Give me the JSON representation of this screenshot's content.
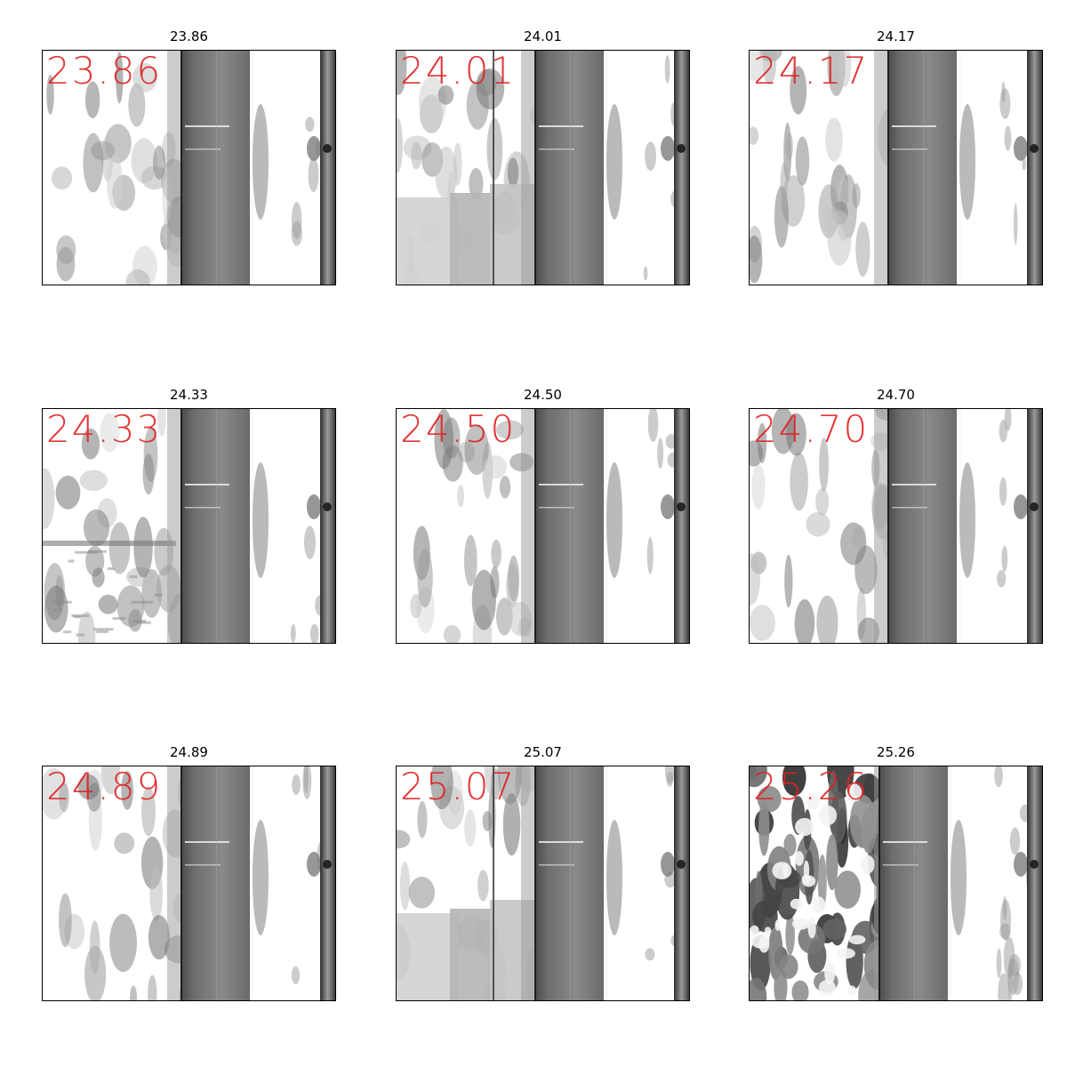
{
  "figure": {
    "panels": [
      {
        "title": "23.86",
        "overlay": "23.86",
        "variant": "a"
      },
      {
        "title": "24.01",
        "overlay": "24.01",
        "variant": "b"
      },
      {
        "title": "24.17",
        "overlay": "24.17",
        "variant": "a"
      },
      {
        "title": "24.33",
        "overlay": "24.33",
        "variant": "c"
      },
      {
        "title": "24.50",
        "overlay": "24.50",
        "variant": "a"
      },
      {
        "title": "24.70",
        "overlay": "24.70",
        "variant": "a"
      },
      {
        "title": "24.89",
        "overlay": "24.89",
        "variant": "a"
      },
      {
        "title": "25.07",
        "overlay": "25.07",
        "variant": "b"
      },
      {
        "title": "25.26",
        "overlay": "25.26",
        "variant": "d"
      }
    ],
    "colors": {
      "overlay_text": "#e02020",
      "road": "#7a7a7a",
      "frame": "#000000"
    }
  }
}
